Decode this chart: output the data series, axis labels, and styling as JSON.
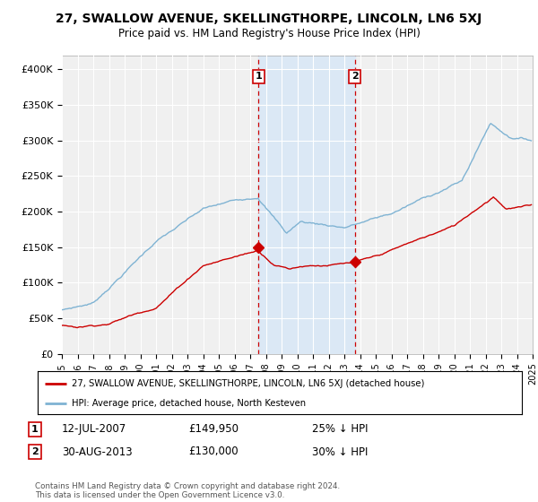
{
  "title": "27, SWALLOW AVENUE, SKELLINGTHORPE, LINCOLN, LN6 5XJ",
  "subtitle": "Price paid vs. HM Land Registry's House Price Index (HPI)",
  "ylim": [
    0,
    420000
  ],
  "yticks": [
    0,
    50000,
    100000,
    150000,
    200000,
    250000,
    300000,
    350000,
    400000
  ],
  "ytick_labels": [
    "£0",
    "£50K",
    "£100K",
    "£150K",
    "£200K",
    "£250K",
    "£300K",
    "£350K",
    "£400K"
  ],
  "hpi_color": "#7fb3d3",
  "sale_color": "#cc0000",
  "sale1_year": 2007.54,
  "sale1_price": 149950,
  "sale2_year": 2013.66,
  "sale2_price": 130000,
  "legend_sale_label": "27, SWALLOW AVENUE, SKELLINGTHORPE, LINCOLN, LN6 5XJ (detached house)",
  "legend_hpi_label": "HPI: Average price, detached house, North Kesteven",
  "annotation1_label": "1",
  "annotation1_date": "12-JUL-2007",
  "annotation1_price": "£149,950",
  "annotation1_pct": "25% ↓ HPI",
  "annotation2_label": "2",
  "annotation2_date": "30-AUG-2013",
  "annotation2_price": "£130,000",
  "annotation2_pct": "30% ↓ HPI",
  "footnote": "Contains HM Land Registry data © Crown copyright and database right 2024.\nThis data is licensed under the Open Government Licence v3.0.",
  "background_color": "#ffffff",
  "plot_bg_color": "#f0f0f0",
  "shading_color": "#dbe8f5",
  "grid_color": "#ffffff"
}
